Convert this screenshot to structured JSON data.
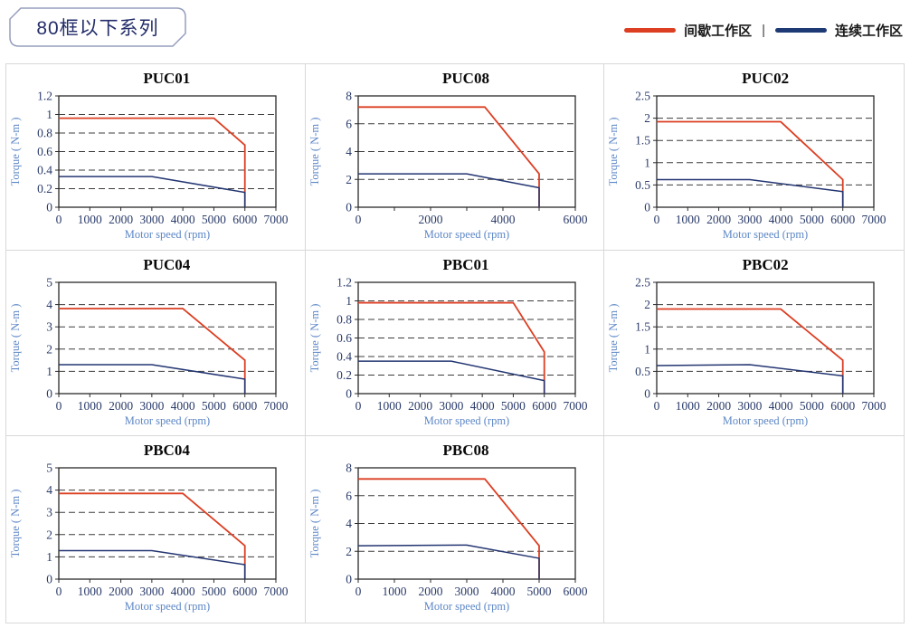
{
  "header": {
    "badge_title": "80框以下系列"
  },
  "legend": {
    "separator": "|",
    "items": [
      {
        "label": "间歇工作区",
        "color": "#dc3e22"
      },
      {
        "label": "连续工作区",
        "color": "#1e3a75"
      }
    ]
  },
  "colors": {
    "intermittent": "#dc3e22",
    "continuous": "#243672",
    "axis_label_blue": "#5d87c6",
    "tick_text": "#2b3c6b",
    "grid_dash": "#3c3c3c",
    "plot_border": "#2a2a2a"
  },
  "chart_data": [
    {
      "type": "line",
      "title": "PUC01",
      "xlabel": "Motor speed (rpm)",
      "ylabel": "Torque ( N-m )",
      "x_max": 7000,
      "y_max": 1.2,
      "x_ticks": [
        0,
        1000,
        2000,
        3000,
        4000,
        5000,
        6000,
        7000
      ],
      "x_tick_labels": [
        "0",
        "1000",
        "2000",
        "3000",
        "4000",
        "5000",
        "6000",
        "7000"
      ],
      "y_ticks": [
        0,
        0.2,
        0.4,
        0.6,
        0.8,
        1,
        1.2
      ],
      "y_tick_labels": [
        "0",
        "0.2",
        "0.4",
        "0.6",
        "0.8",
        "1",
        "1.2"
      ],
      "series": [
        {
          "name": "间歇工作区",
          "key": "intermittent",
          "points": [
            [
              0,
              0.96
            ],
            [
              5000,
              0.96
            ],
            [
              6000,
              0.67
            ],
            [
              6000,
              0
            ]
          ]
        },
        {
          "name": "连续工作区",
          "key": "continuous",
          "points": [
            [
              0,
              0.33
            ],
            [
              3000,
              0.33
            ],
            [
              6000,
              0.16
            ],
            [
              6000,
              0
            ]
          ]
        }
      ]
    },
    {
      "type": "line",
      "title": "PUC08",
      "xlabel": "Motor speed (rpm)",
      "ylabel": "Torque ( N-m )",
      "x_max": 6000,
      "y_max": 8,
      "x_ticks": [
        0,
        1000,
        2000,
        3000,
        4000,
        5000,
        6000
      ],
      "x_tick_labels": [
        "0",
        "",
        "2000",
        "",
        "4000",
        "",
        "6000"
      ],
      "y_ticks": [
        0,
        2,
        4,
        6,
        8
      ],
      "y_tick_labels": [
        "0",
        "2",
        "4",
        "6",
        "8"
      ],
      "series": [
        {
          "name": "间歇工作区",
          "key": "intermittent",
          "points": [
            [
              0,
              7.2
            ],
            [
              3500,
              7.2
            ],
            [
              5000,
              2.4
            ],
            [
              5000,
              0
            ]
          ]
        },
        {
          "name": "连续工作区",
          "key": "continuous",
          "points": [
            [
              0,
              2.4
            ],
            [
              3000,
              2.4
            ],
            [
              5000,
              1.4
            ],
            [
              5000,
              0
            ]
          ]
        }
      ]
    },
    {
      "type": "line",
      "title": "PUC02",
      "xlabel": "Motor speed (rpm)",
      "ylabel": "Torque ( N-m )",
      "x_max": 7000,
      "y_max": 2.5,
      "x_ticks": [
        0,
        1000,
        2000,
        3000,
        4000,
        5000,
        6000,
        7000
      ],
      "x_tick_labels": [
        "0",
        "1000",
        "2000",
        "3000",
        "4000",
        "5000",
        "6000",
        "7000"
      ],
      "y_ticks": [
        0,
        0.5,
        1,
        1.5,
        2,
        2.5
      ],
      "y_tick_labels": [
        "0",
        "0.5",
        "1",
        "1.5",
        "2",
        "2.5"
      ],
      "series": [
        {
          "name": "间歇工作区",
          "key": "intermittent",
          "points": [
            [
              0,
              1.92
            ],
            [
              4000,
              1.92
            ],
            [
              6000,
              0.62
            ],
            [
              6000,
              0
            ]
          ]
        },
        {
          "name": "连续工作区",
          "key": "continuous",
          "points": [
            [
              0,
              0.62
            ],
            [
              3000,
              0.62
            ],
            [
              6000,
              0.35
            ],
            [
              6000,
              0
            ]
          ]
        }
      ]
    },
    {
      "type": "line",
      "title": "PUC04",
      "xlabel": "Motor speed (rpm)",
      "ylabel": "Torque ( N-m )",
      "x_max": 7000,
      "y_max": 5,
      "x_ticks": [
        0,
        1000,
        2000,
        3000,
        4000,
        5000,
        6000,
        7000
      ],
      "x_tick_labels": [
        "0",
        "1000",
        "2000",
        "3000",
        "4000",
        "5000",
        "6000",
        "7000"
      ],
      "y_ticks": [
        0,
        1,
        2,
        3,
        4,
        5
      ],
      "y_tick_labels": [
        "0",
        "1",
        "2",
        "3",
        "4",
        "5"
      ],
      "series": [
        {
          "name": "间歇工作区",
          "key": "intermittent",
          "points": [
            [
              0,
              3.82
            ],
            [
              4000,
              3.82
            ],
            [
              6000,
              1.5
            ],
            [
              6000,
              0
            ]
          ]
        },
        {
          "name": "连续工作区",
          "key": "continuous",
          "points": [
            [
              0,
              1.3
            ],
            [
              3000,
              1.3
            ],
            [
              6000,
              0.65
            ],
            [
              6000,
              0
            ]
          ]
        }
      ]
    },
    {
      "type": "line",
      "title": "PBC01",
      "xlabel": "Motor speed (rpm)",
      "ylabel": "Torque ( N-m )",
      "x_max": 7000,
      "y_max": 1.2,
      "x_ticks": [
        0,
        1000,
        2000,
        3000,
        4000,
        5000,
        6000,
        7000
      ],
      "x_tick_labels": [
        "0",
        "1000",
        "2000",
        "3000",
        "4000",
        "5000",
        "6000",
        "7000"
      ],
      "y_ticks": [
        0,
        0.2,
        0.4,
        0.6,
        0.8,
        1,
        1.2
      ],
      "y_tick_labels": [
        "0",
        "0.2",
        "0.4",
        "0.6",
        "0.8",
        "1",
        "1.2"
      ],
      "series": [
        {
          "name": "间歇工作区",
          "key": "intermittent",
          "points": [
            [
              0,
              0.98
            ],
            [
              5000,
              0.98
            ],
            [
              6000,
              0.45
            ],
            [
              6000,
              0
            ]
          ]
        },
        {
          "name": "连续工作区",
          "key": "continuous",
          "points": [
            [
              0,
              0.35
            ],
            [
              3000,
              0.35
            ],
            [
              6000,
              0.14
            ],
            [
              6000,
              0
            ]
          ]
        }
      ]
    },
    {
      "type": "line",
      "title": "PBC02",
      "xlabel": "Motor speed (rpm)",
      "ylabel": "Torque ( N-m )",
      "x_max": 7000,
      "y_max": 2.5,
      "x_ticks": [
        0,
        1000,
        2000,
        3000,
        4000,
        5000,
        6000,
        7000
      ],
      "x_tick_labels": [
        "0",
        "1000",
        "2000",
        "3000",
        "4000",
        "5000",
        "6000",
        "7000"
      ],
      "y_ticks": [
        0,
        0.5,
        1,
        1.5,
        2,
        2.5
      ],
      "y_tick_labels": [
        "0",
        "0.5",
        "1",
        "1.5",
        "2",
        "2.5"
      ],
      "series": [
        {
          "name": "间歇工作区",
          "key": "intermittent",
          "points": [
            [
              0,
              1.9
            ],
            [
              4000,
              1.9
            ],
            [
              6000,
              0.75
            ],
            [
              6000,
              0
            ]
          ]
        },
        {
          "name": "连续工作区",
          "key": "continuous",
          "points": [
            [
              0,
              0.63
            ],
            [
              3000,
              0.65
            ],
            [
              6000,
              0.4
            ],
            [
              6000,
              0
            ]
          ]
        }
      ]
    },
    {
      "type": "line",
      "title": "PBC04",
      "xlabel": "Motor speed (rpm)",
      "ylabel": "Torque ( N-m )",
      "x_max": 7000,
      "y_max": 5,
      "x_ticks": [
        0,
        1000,
        2000,
        3000,
        4000,
        5000,
        6000,
        7000
      ],
      "x_tick_labels": [
        "0",
        "1000",
        "2000",
        "3000",
        "4000",
        "5000",
        "6000",
        "7000"
      ],
      "y_ticks": [
        0,
        1,
        2,
        3,
        4,
        5
      ],
      "y_tick_labels": [
        "0",
        "1",
        "2",
        "3",
        "4",
        "5"
      ],
      "series": [
        {
          "name": "间歇工作区",
          "key": "intermittent",
          "points": [
            [
              0,
              3.85
            ],
            [
              4000,
              3.85
            ],
            [
              6000,
              1.5
            ],
            [
              6000,
              0
            ]
          ]
        },
        {
          "name": "连续工作区",
          "key": "continuous",
          "points": [
            [
              0,
              1.28
            ],
            [
              3000,
              1.28
            ],
            [
              6000,
              0.65
            ],
            [
              6000,
              0
            ]
          ]
        }
      ]
    },
    {
      "type": "line",
      "title": "PBC08",
      "xlabel": "Motor speed (rpm)",
      "ylabel": "Torque ( N-m )",
      "x_max": 6000,
      "y_max": 8,
      "x_ticks": [
        0,
        1000,
        2000,
        3000,
        4000,
        5000,
        6000
      ],
      "x_tick_labels": [
        "0",
        "1000",
        "2000",
        "3000",
        "4000",
        "5000",
        "6000"
      ],
      "y_ticks": [
        0,
        2,
        4,
        6,
        8
      ],
      "y_tick_labels": [
        "0",
        "2",
        "4",
        "6",
        "8"
      ],
      "series": [
        {
          "name": "间歇工作区",
          "key": "intermittent",
          "points": [
            [
              0,
              7.2
            ],
            [
              3500,
              7.2
            ],
            [
              5000,
              2.4
            ],
            [
              5000,
              0
            ]
          ]
        },
        {
          "name": "连续工作区",
          "key": "continuous",
          "points": [
            [
              0,
              2.4
            ],
            [
              3000,
              2.45
            ],
            [
              5000,
              1.5
            ],
            [
              5000,
              0
            ]
          ]
        }
      ]
    }
  ]
}
